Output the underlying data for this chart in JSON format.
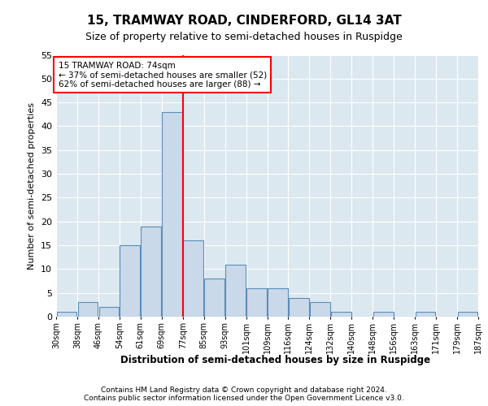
{
  "title1": "15, TRAMWAY ROAD, CINDERFORD, GL14 3AT",
  "title2": "Size of property relative to semi-detached houses in Ruspidge",
  "xlabel": "Distribution of semi-detached houses by size in Ruspidge",
  "ylabel": "Number of semi-detached properties",
  "bins": [
    "30sqm",
    "38sqm",
    "46sqm",
    "54sqm",
    "61sqm",
    "69sqm",
    "77sqm",
    "85sqm",
    "93sqm",
    "101sqm",
    "109sqm",
    "116sqm",
    "124sqm",
    "132sqm",
    "140sqm",
    "148sqm",
    "156sqm",
    "163sqm",
    "171sqm",
    "179sqm",
    "187sqm"
  ],
  "values": [
    1,
    3,
    2,
    15,
    19,
    43,
    16,
    8,
    11,
    6,
    6,
    4,
    3,
    1,
    0,
    1,
    0,
    1,
    0,
    1
  ],
  "bar_color": "#c9d9ea",
  "bar_edge_color": "#5b8db8",
  "vline_color": "red",
  "annotation_line1": "15 TRAMWAY ROAD: 74sqm",
  "annotation_line2": "← 37% of semi-detached houses are smaller (52)",
  "annotation_line3": "62% of semi-detached houses are larger (88) →",
  "ylim": [
    0,
    55
  ],
  "yticks": [
    0,
    5,
    10,
    15,
    20,
    25,
    30,
    35,
    40,
    45,
    50,
    55
  ],
  "footer1": "Contains HM Land Registry data © Crown copyright and database right 2024.",
  "footer2": "Contains public sector information licensed under the Open Government Licence v3.0.",
  "plot_bg_color": "#dce8f0"
}
